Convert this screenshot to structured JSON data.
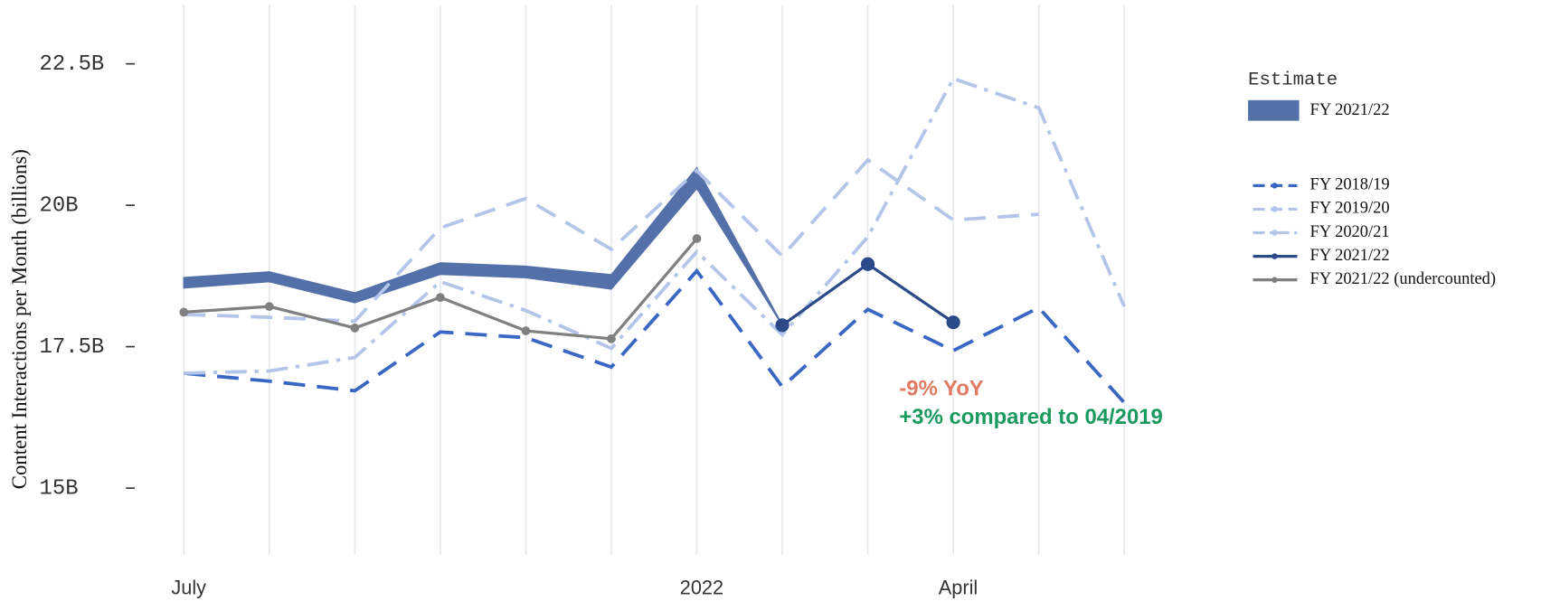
{
  "chart_data": {
    "type": "line",
    "y_label": "Content Interactions per Month (billions)",
    "categories": [
      "July",
      null,
      null,
      null,
      null,
      null,
      "2022",
      null,
      null,
      "April",
      null,
      null
    ],
    "ylim": [
      13.9,
      23.6
    ],
    "yticks": [
      {
        "value": 15,
        "label": "15B"
      },
      {
        "value": 17.5,
        "label": "17.5B"
      },
      {
        "value": 20,
        "label": "20B"
      },
      {
        "value": 22.5,
        "label": "22.5B"
      }
    ],
    "grid": true,
    "legend_title": "Estimate",
    "band": {
      "name": "FY 2021/22",
      "color": "#5470a8",
      "upper": [
        18.72,
        18.82,
        18.45,
        18.98,
        18.92,
        18.77,
        20.66,
        17.88
      ],
      "lower": [
        18.54,
        18.65,
        18.28,
        18.78,
        18.72,
        18.52,
        20.3,
        17.88
      ]
    },
    "series": [
      {
        "name": "FY 2018/19",
        "color": "#3a66c4",
        "style": "dashed",
        "values": [
          17.03,
          16.89,
          16.72,
          17.76,
          17.66,
          17.14,
          18.84,
          16.79,
          18.16,
          17.43,
          18.19,
          16.51
        ]
      },
      {
        "name": "FY 2019/20",
        "color": "#b3c5e8",
        "style": "dashed",
        "values": [
          18.07,
          18.02,
          17.95,
          19.6,
          20.12,
          19.22,
          20.61,
          19.1,
          20.8,
          19.74,
          19.84,
          null
        ]
      },
      {
        "name": "FY 2020/21",
        "color": "#b3c5e8",
        "style": "dashdot",
        "values": [
          17.03,
          17.07,
          17.31,
          18.65,
          18.14,
          17.47,
          19.18,
          17.71,
          19.44,
          22.24,
          21.72,
          18.21
        ]
      },
      {
        "name": "FY 2021/22",
        "color": "#2a4a8a",
        "style": "solid",
        "marker": true,
        "values": [
          null,
          null,
          null,
          null,
          null,
          null,
          null,
          17.88,
          18.96,
          17.93,
          null,
          null
        ]
      },
      {
        "name": "FY 2021/22 (undercounted)",
        "color": "#808080",
        "style": "solid",
        "marker": true,
        "values": [
          18.11,
          18.21,
          17.83,
          18.37,
          17.78,
          17.64,
          19.41,
          null,
          null,
          null,
          null,
          null
        ]
      }
    ],
    "annotations": [
      {
        "text": "-9% YoY",
        "color": "#e07b62"
      },
      {
        "text": "+3% compared to 04/2019",
        "color": "#1a9a5e"
      }
    ]
  }
}
